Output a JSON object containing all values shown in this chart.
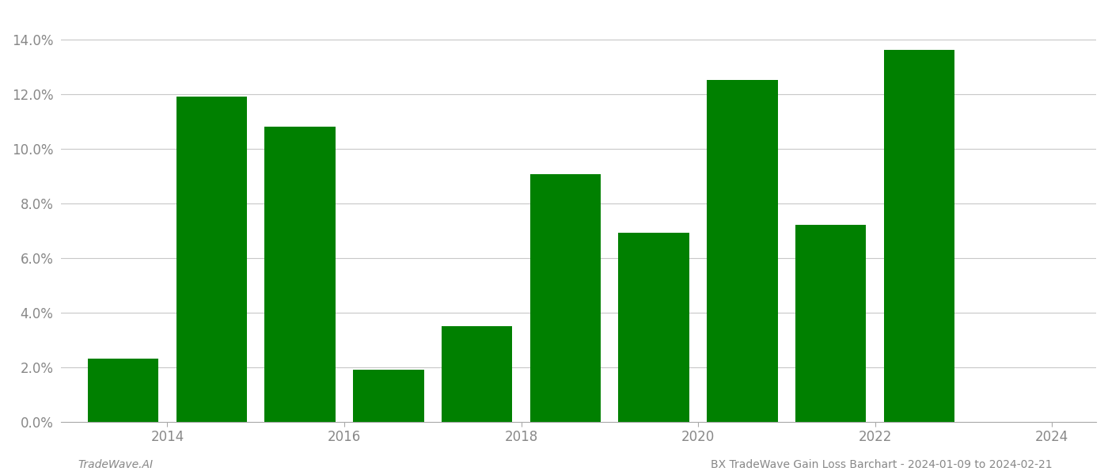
{
  "years": [
    2014,
    2015,
    2016,
    2017,
    2018,
    2019,
    2020,
    2021,
    2022,
    2023
  ],
  "values": [
    0.023,
    0.119,
    0.108,
    0.019,
    0.035,
    0.0905,
    0.069,
    0.125,
    0.072,
    0.136
  ],
  "bar_color": "#008000",
  "background_color": "#ffffff",
  "grid_color": "#c8c8c8",
  "footer_left": "TradeWave.AI",
  "footer_right": "BX TradeWave Gain Loss Barchart - 2024-01-09 to 2024-02-21",
  "ylim": [
    0.0,
    0.15
  ],
  "yticks": [
    0.0,
    0.02,
    0.04,
    0.06,
    0.08,
    0.1,
    0.12,
    0.14
  ],
  "tick_fontsize": 12,
  "tick_label_color": "#888888",
  "footer_fontsize": 10,
  "bar_width": 0.8,
  "xtick_labels": [
    "2014",
    "2016",
    "2018",
    "2020",
    "2022",
    "2024"
  ],
  "xtick_positions": [
    0.5,
    2.5,
    4.5,
    6.5,
    8.5,
    10.5
  ]
}
